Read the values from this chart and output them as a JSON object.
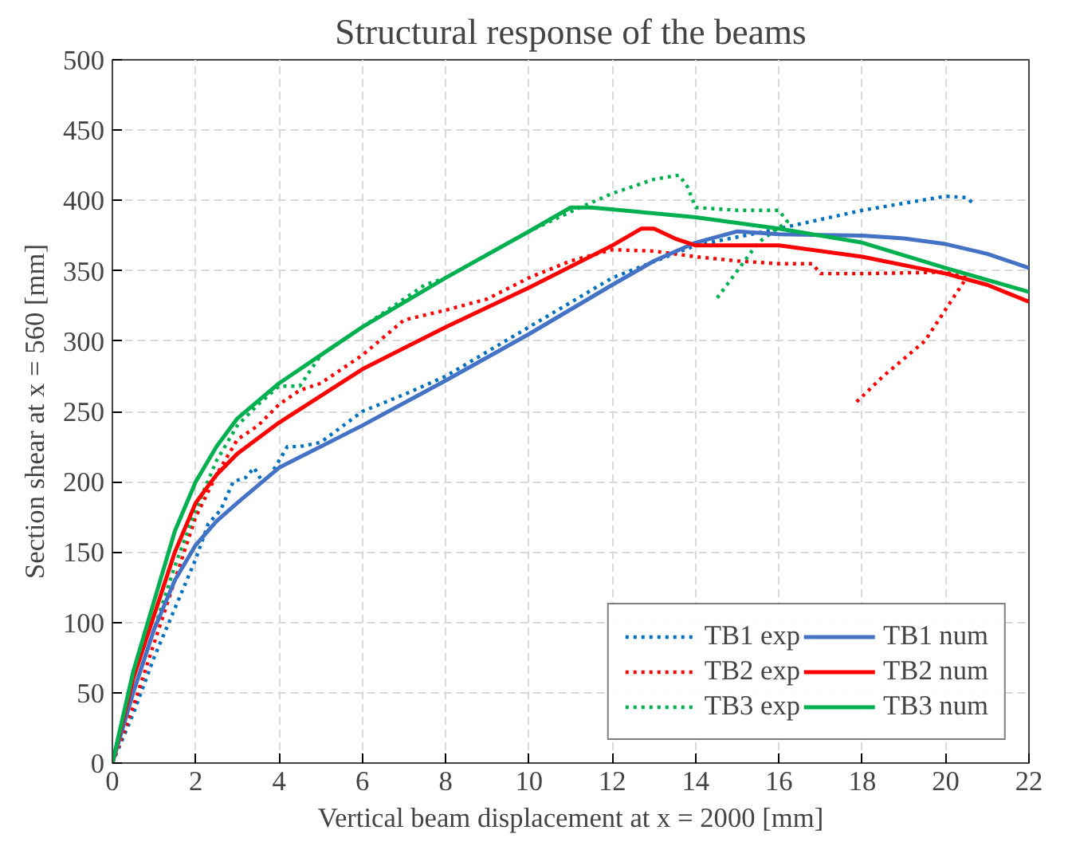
{
  "chart_data": {
    "type": "line",
    "title": "Structural response of the beams",
    "xlabel": "Vertical beam displacement at x = 2000 [mm]",
    "ylabel": "Section shear at x = 560 [mm]",
    "xlim": [
      0,
      22
    ],
    "ylim": [
      0,
      500
    ],
    "xticks": [
      0,
      2,
      4,
      6,
      8,
      10,
      12,
      14,
      16,
      18,
      20,
      22
    ],
    "yticks": [
      0,
      50,
      100,
      150,
      200,
      250,
      300,
      350,
      400,
      450,
      500
    ],
    "grid": true,
    "legend": "bottom right",
    "marker": "none",
    "series": [
      {
        "name": "TB1 exp",
        "color": "#0070c0",
        "line_style": "dotted",
        "x": [
          0,
          0.5,
          1,
          1.5,
          2,
          2.3,
          2.6,
          2.9,
          3.2,
          3.4,
          3.6,
          3.8,
          4,
          4.2,
          4.5,
          5,
          6,
          7,
          8,
          10,
          12,
          14,
          16,
          18,
          19,
          20,
          20.5,
          20.7
        ],
        "values": [
          0,
          35,
          75,
          110,
          145,
          170,
          180,
          200,
          203,
          210,
          200,
          205,
          215,
          225,
          225,
          228,
          250,
          262,
          275,
          310,
          345,
          368,
          380,
          393,
          398,
          403,
          402,
          397
        ]
      },
      {
        "name": "TB2 exp",
        "color": "#ff0000",
        "line_style": "dotted",
        "x": [
          0,
          0.5,
          1,
          1.5,
          2,
          2.5,
          3,
          3.5,
          4,
          4.5,
          5,
          6,
          7,
          8,
          9,
          10,
          11,
          12,
          13,
          14,
          15,
          16,
          16.8,
          17,
          18,
          20,
          20.5,
          19.5,
          18.5,
          17.8
        ],
        "values": [
          0,
          40,
          85,
          130,
          175,
          205,
          230,
          240,
          255,
          265,
          270,
          290,
          315,
          322,
          330,
          345,
          357,
          365,
          364,
          360,
          357,
          355,
          355,
          348,
          348,
          349,
          345,
          300,
          275,
          255
        ]
      },
      {
        "name": "TB3 exp",
        "color": "#00b050",
        "line_style": "dotted",
        "x": [
          0,
          0.5,
          1,
          1.5,
          2,
          2.5,
          3,
          3.5,
          4,
          4.5,
          5,
          6,
          7,
          7.5,
          8,
          10,
          11,
          12,
          13,
          13.6,
          13.8,
          14,
          15,
          16,
          16.2,
          15.5,
          15,
          14.5
        ],
        "values": [
          0,
          50,
          95,
          140,
          180,
          215,
          240,
          255,
          268,
          268,
          290,
          310,
          330,
          340,
          345,
          378,
          392,
          405,
          415,
          418,
          410,
          395,
          393,
          393,
          385,
          370,
          350,
          330
        ]
      },
      {
        "name": "TB1 num",
        "color": "#4472c4",
        "line_style": "solid",
        "x": [
          0,
          0.5,
          1,
          1.5,
          2,
          2.5,
          3,
          4,
          6,
          8,
          10,
          12,
          13,
          14,
          15,
          16,
          18,
          19,
          20,
          21,
          22
        ],
        "values": [
          0,
          50,
          95,
          130,
          155,
          172,
          185,
          210,
          240,
          272,
          305,
          340,
          357,
          370,
          378,
          376,
          375,
          373,
          369,
          362,
          352
        ]
      },
      {
        "name": "TB2 num",
        "color": "#ff0000",
        "line_style": "solid",
        "x": [
          0,
          0.5,
          1,
          1.5,
          2,
          2.5,
          3,
          4,
          6,
          8,
          10,
          12,
          12.7,
          13,
          13.5,
          14,
          16,
          18,
          20,
          21,
          22
        ],
        "values": [
          0,
          60,
          105,
          150,
          185,
          205,
          220,
          242,
          280,
          310,
          338,
          368,
          380,
          380,
          373,
          368,
          368,
          360,
          348,
          340,
          328
        ]
      },
      {
        "name": "TB3 num",
        "color": "#00b050",
        "line_style": "solid",
        "x": [
          0,
          0.5,
          1,
          1.5,
          2,
          2.5,
          3,
          4,
          5,
          6,
          8,
          10,
          11,
          11.5,
          14,
          16,
          18,
          20,
          22
        ],
        "values": [
          0,
          65,
          115,
          165,
          200,
          225,
          245,
          270,
          290,
          310,
          345,
          378,
          395,
          395,
          388,
          380,
          370,
          352,
          335
        ]
      }
    ]
  }
}
